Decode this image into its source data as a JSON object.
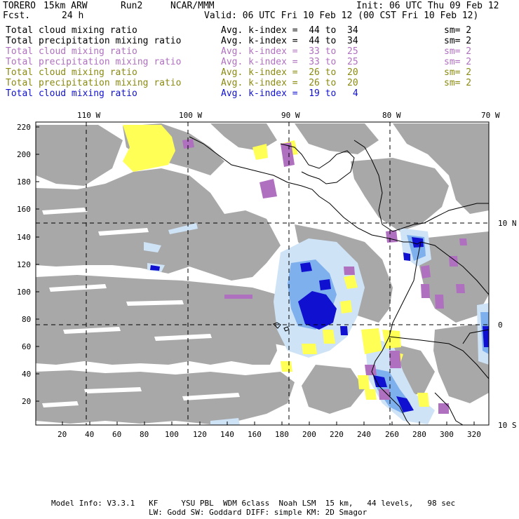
{
  "header": {
    "model": "TORERO",
    "resolution": "15km ARW",
    "run": "Run2",
    "org": "NCAR/MMM",
    "init": "Init: 06 UTC Thu 09 Feb 12",
    "fcst_label": "Fcst.",
    "fcst_value": "24 h",
    "valid": "Valid: 06 UTC Fri 10 Feb 12 (00 CST Fri 10 Feb 12)"
  },
  "legend_rows": [
    {
      "field": "Total cloud mixing ratio",
      "stat": "Avg. k-index =  44 to  34",
      "sm": "sm= 2",
      "color": "#000000"
    },
    {
      "field": "Total precipitation mixing ratio",
      "stat": "Avg. k-index =  44 to  34",
      "sm": "sm= 2",
      "color": "#000000"
    },
    {
      "field": "Total cloud mixing ratio",
      "stat": "Avg. k-index =  33 to  25",
      "sm": "sm= 2",
      "color": "#b070c0"
    },
    {
      "field": "Total precipitation mixing ratio",
      "stat": "Avg. k-index =  33 to  25",
      "sm": "sm= 2",
      "color": "#b070c0"
    },
    {
      "field": "Total cloud mixing ratio",
      "stat": "Avg. k-index =  26 to  20",
      "sm": "sm= 2",
      "color": "#8a8a10"
    },
    {
      "field": "Total precipitation mixing ratio",
      "stat": "Avg. k-index =  26 to  20",
      "sm": "sm= 2",
      "color": "#8a8a10"
    },
    {
      "field": "Total cloud mixing ratio",
      "stat": "Avg. k-index =  19 to   4",
      "sm": "",
      "color": "#1010d0"
    }
  ],
  "lon_labels": [
    "110 W",
    "100 W",
    "90 W",
    "80 W",
    "70 W"
  ],
  "lat_labels": [
    "10 N",
    "0",
    "10 S"
  ],
  "y_ticks": [
    "220",
    "200",
    "180",
    "160",
    "140",
    "120",
    "100",
    "80",
    "60",
    "40",
    "20"
  ],
  "x_ticks": [
    "20",
    "40",
    "60",
    "80",
    "100",
    "120",
    "140",
    "160",
    "180",
    "200",
    "220",
    "240",
    "260",
    "280",
    "300",
    "320"
  ],
  "footer": {
    "line1": "Model Info: V3.3.1   KF     YSU PBL  WDM 6class  Noah LSM  15 km,   44 levels,   98 sec",
    "line2": "LW: Godd SW: Goddard DIFF: simple KM: 2D Smagor"
  },
  "colors": {
    "cloud_gray": "#a8a8a8",
    "magenta": "#b070c0",
    "yellow": "#ffff55",
    "blue_light": "#cfe3f7",
    "blue_mid": "#7fb0ee",
    "blue_dark": "#1010d0"
  }
}
